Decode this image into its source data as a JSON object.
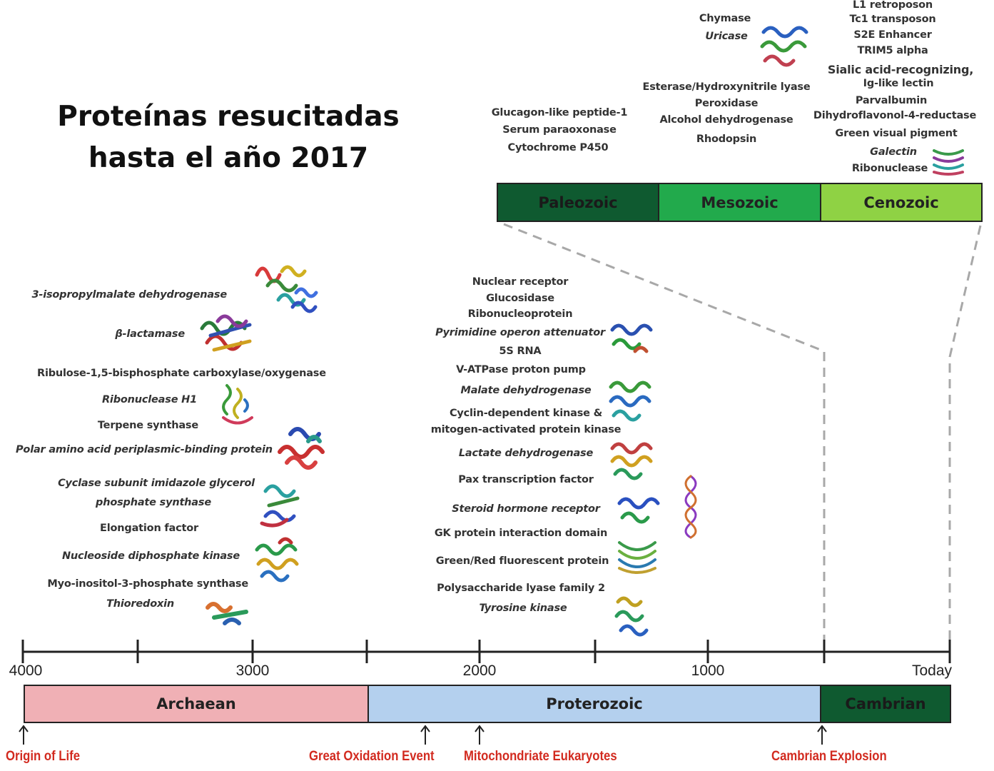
{
  "title": {
    "line1": "Proteínas resucitadas",
    "line2": "hasta el año 2017"
  },
  "timeline": {
    "ticks": [
      {
        "label": "4000",
        "value": 4000
      },
      {
        "label": "3000",
        "value": 3000
      },
      {
        "label": "2000",
        "value": 2000
      },
      {
        "label": "1000",
        "value": 1000
      },
      {
        "label": "Today",
        "value": 0
      }
    ]
  },
  "eons": [
    {
      "name": "Archaean",
      "color": "#f0b0b5"
    },
    {
      "name": "Proterozoic",
      "color": "#b4d0ee"
    },
    {
      "name": "Cambrian",
      "color": "#0f5a30"
    }
  ],
  "eras": [
    {
      "name": "Paleozoic",
      "color": "#0f5a30"
    },
    {
      "name": "Mesozoic",
      "color": "#22aa4c"
    },
    {
      "name": "Cenozoic",
      "color": "#8fd244"
    }
  ],
  "events": [
    "Origin of Life",
    "Great Oxidation Event",
    "Mitochondriate Eukaryotes",
    "Cambrian Explosion"
  ],
  "archaean_proteins": [
    "3-isopropylmalate dehydrogenase",
    "β-lactamase",
    "Ribulose-1,5-bisphosphate carboxylase/oxygenase",
    "Ribonuclease H1",
    "Terpene synthase",
    "Polar amino acid periplasmic-binding protein",
    "Cyclase subunit imidazole glycerol",
    "phosphate synthase",
    "Elongation factor",
    "Nucleoside diphosphate kinase",
    "Myo-inositol-3-phosphate synthase",
    "Thioredoxin"
  ],
  "proterozoic_proteins": [
    "Nuclear receptor",
    "Glucosidase",
    "Ribonucleoprotein",
    "Pyrimidine operon attenuator",
    "5S RNA",
    "V-ATPase proton pump",
    "Malate dehydrogenase",
    "Cyclin-dependent kinase &",
    "mitogen-activated protein kinase",
    "Lactate dehydrogenase",
    "Pax transcription factor",
    "Steroid hormone receptor",
    "GK protein interaction domain",
    "Green/Red fluorescent protein",
    "Polysaccharide lyase family 2",
    "Tyrosine kinase"
  ],
  "paleozoic_proteins": [
    "Glucagon-like peptide-1",
    "Serum paraoxonase",
    "Cytochrome P450"
  ],
  "mesozoic_proteins": [
    "Chymase",
    "Uricase",
    "Esterase/Hydroxynitrile lyase",
    "Peroxidase",
    "Alcohol dehydrogenase",
    "Rhodopsin"
  ],
  "cenozoic_proteins": [
    "L1 retroposon",
    "Tc1 transposon",
    "S2E Enhancer",
    "TRIM5 alpha",
    "Sialic acid-recognizing,",
    "Ig-like lectin",
    "Parvalbumin",
    "Dihydroflavonol-4-reductase",
    "Green visual pigment",
    "Galectin",
    "Ribonuclease"
  ]
}
